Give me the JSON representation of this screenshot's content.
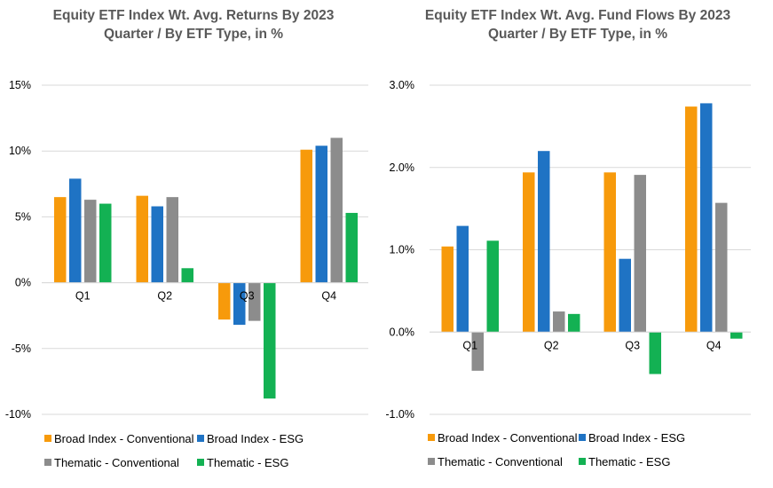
{
  "colors": {
    "broad_conventional": "#F79A0B",
    "broad_esg": "#1F73C4",
    "thematic_conventional": "#8C8C8C",
    "thematic_esg": "#13B153",
    "grid": "#D9D9D9",
    "title": "#595959"
  },
  "chart_data": [
    {
      "type": "bar",
      "title_lines": [
        "Equity ETF Index Wt. Avg. Returns By 2023",
        "Quarter / By ETF Type, in %"
      ],
      "categories": [
        "Q1",
        "Q2",
        "Q3",
        "Q4"
      ],
      "ylim": [
        -10,
        15
      ],
      "yticks": [
        -10,
        -5,
        0,
        5,
        10,
        15
      ],
      "ytick_labels": [
        "-10%",
        "-5%",
        "0%",
        "5%",
        "10%",
        "15%"
      ],
      "grid": true,
      "legend_position": "bottom",
      "series": [
        {
          "name": "Broad Index - Conventional",
          "color_key": "broad_conventional",
          "values": [
            6.5,
            6.6,
            -2.8,
            10.1
          ]
        },
        {
          "name": "Broad Index - ESG",
          "color_key": "broad_esg",
          "values": [
            7.9,
            5.8,
            -3.2,
            10.4
          ]
        },
        {
          "name": "Thematic - Conventional",
          "color_key": "thematic_conventional",
          "values": [
            6.3,
            6.5,
            -2.9,
            11.0
          ]
        },
        {
          "name": "Thematic - ESG",
          "color_key": "thematic_esg",
          "values": [
            6.0,
            1.1,
            -8.8,
            5.3
          ]
        }
      ]
    },
    {
      "type": "bar",
      "title_lines": [
        "Equity ETF Index Wt. Avg. Fund Flows By 2023",
        "Quarter / By ETF Type, in %"
      ],
      "categories": [
        "Q1",
        "Q2",
        "Q3",
        "Q4"
      ],
      "ylim": [
        -1.0,
        3.0
      ],
      "yticks": [
        -1.0,
        0.0,
        1.0,
        2.0,
        3.0
      ],
      "ytick_labels": [
        "-1.0%",
        "0.0%",
        "1.0%",
        "2.0%",
        "3.0%"
      ],
      "grid": true,
      "legend_position": "bottom",
      "series": [
        {
          "name": "Broad Index - Conventional",
          "color_key": "broad_conventional",
          "values": [
            1.04,
            1.94,
            1.94,
            2.74
          ]
        },
        {
          "name": "Broad Index - ESG",
          "color_key": "broad_esg",
          "values": [
            1.29,
            2.2,
            0.89,
            2.78
          ]
        },
        {
          "name": "Thematic - Conventional",
          "color_key": "thematic_conventional",
          "values": [
            -0.47,
            0.25,
            1.91,
            1.57
          ]
        },
        {
          "name": "Thematic - ESG",
          "color_key": "thematic_esg",
          "values": [
            1.11,
            0.22,
            -0.51,
            -0.08
          ]
        }
      ]
    }
  ]
}
